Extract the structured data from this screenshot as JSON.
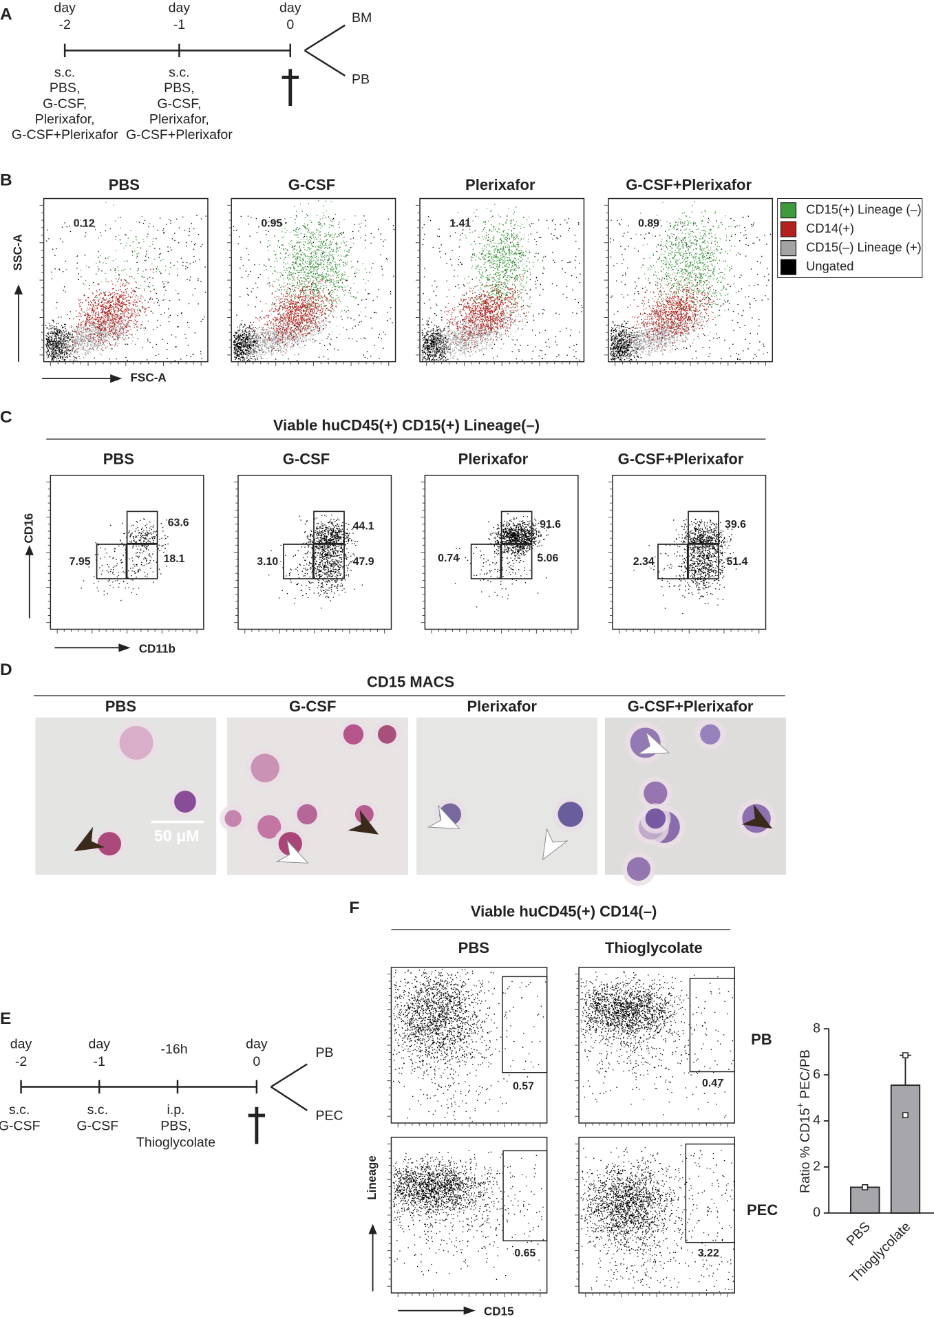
{
  "panels": {
    "A": {
      "label": "A",
      "timepoints": [
        {
          "day": "day",
          "num": "-2",
          "treatment": [
            "s.c.",
            "PBS,",
            "G-CSF,",
            "Plerixafor,",
            "G-CSF+Plerixafor"
          ]
        },
        {
          "day": "day",
          "num": "-1",
          "treatment": [
            "s.c.",
            "PBS,",
            "G-CSF,",
            "Plerixafor,",
            "G-CSF+Plerixafor"
          ]
        },
        {
          "day": "day",
          "num": "0"
        }
      ],
      "outputs": [
        "BM",
        "PB"
      ]
    },
    "B": {
      "label": "B",
      "groups": [
        "PBS",
        "G-CSF",
        "Plerixafor",
        "G-CSF+Plerixafor"
      ],
      "percentages": [
        "0.12",
        "0.95",
        "1.41",
        "0.89"
      ],
      "y_axis": "SSC-A",
      "x_axis": "FSC-A",
      "legend": [
        {
          "name": "CD15(+) Lineage (–)",
          "color": "#3d9a3d"
        },
        {
          "name": "CD14(+)",
          "color": "#b3211e"
        },
        {
          "name": "CD15(–) Lineage (+)",
          "color": "#a3a3a3"
        },
        {
          "name": "Ungated",
          "color": "#000000"
        }
      ]
    },
    "C": {
      "label": "C",
      "header": "Viable huCD45(+) CD15(+) Lineage(–)",
      "groups": [
        "PBS",
        "G-CSF",
        "Plerixafor",
        "G-CSF+Plerixafor"
      ],
      "gates": [
        [
          "63.6",
          "18.1",
          "7.95"
        ],
        [
          "44.1",
          "47.9",
          "3.10"
        ],
        [
          "91.6",
          "5.06",
          "0.74"
        ],
        [
          "39.6",
          "51.4",
          "2.34"
        ]
      ],
      "y_axis": "CD16",
      "x_axis": "CD11b"
    },
    "D": {
      "label": "D",
      "header": "CD15 MACS",
      "groups": [
        "PBS",
        "G-CSF",
        "Plerixafor",
        "G-CSF+Plerixafor"
      ],
      "scale_bar": "50 μM"
    },
    "E": {
      "label": "E",
      "timepoints": [
        {
          "day": "day",
          "num": "-2",
          "treatment": [
            "s.c.",
            "G-CSF"
          ]
        },
        {
          "day": "day",
          "num": "-1",
          "treatment": [
            "s.c.",
            "G-CSF"
          ]
        },
        {
          "num": "-16h",
          "treatment": [
            "i.p.",
            "PBS,",
            "Thioglycolate"
          ]
        },
        {
          "day": "day",
          "num": "0"
        }
      ],
      "outputs": [
        "PB",
        "PEC"
      ]
    },
    "F": {
      "label": "F",
      "header": "Viable huCD45(+) CD14(–)",
      "columns": [
        "PBS",
        "Thioglycolate"
      ],
      "rows": [
        "PB",
        "PEC"
      ],
      "gates": [
        [
          "0.57",
          "0.47"
        ],
        [
          "0.65",
          "3.22"
        ]
      ],
      "y_axis": "Lineage",
      "x_axis": "CD15"
    }
  },
  "chart_data": {
    "type": "bar",
    "categories": [
      "PBS",
      "Thioglycolate"
    ],
    "values": [
      1.12,
      5.55
    ],
    "errors": [
      null,
      1.3
    ],
    "points": [
      [
        1.12,
        1.12
      ],
      [
        6.85,
        4.25
      ]
    ],
    "color": "#a6a6ab",
    "ylim": [
      0,
      8
    ],
    "yticks": [
      0,
      2,
      4,
      6,
      8
    ],
    "y_label": [
      "Ratio % CD15",
      "+",
      " PEC/PB"
    ]
  }
}
